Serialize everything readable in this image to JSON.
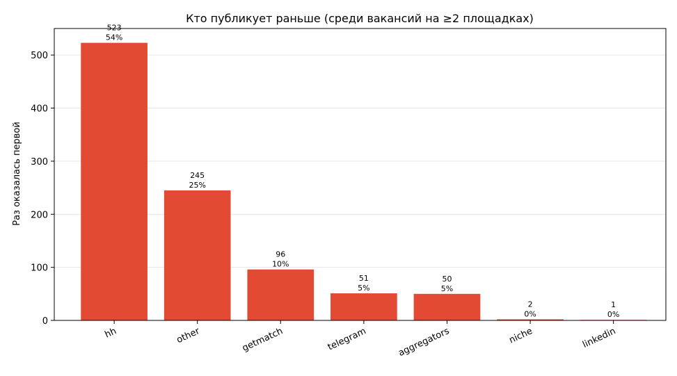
{
  "chart_data": {
    "type": "bar",
    "title": "Кто публикует раньше (среди вакансий на ≥2 площадках)",
    "xlabel": "",
    "ylabel": "Раз оказалась первой",
    "categories": [
      "hh",
      "other",
      "getmatch",
      "telegram",
      "aggregators",
      "niche",
      "linkedin"
    ],
    "values": [
      523,
      245,
      96,
      51,
      50,
      2,
      1
    ],
    "percent_labels": [
      "54%",
      "25%",
      "10%",
      "5%",
      "5%",
      "0%",
      "0%"
    ],
    "ylim": [
      0,
      550
    ],
    "yticks": [
      0,
      100,
      200,
      300,
      400,
      500
    ],
    "grid": "y",
    "bar_color": "#e34a33",
    "grid_color": "#e6e6e6"
  }
}
